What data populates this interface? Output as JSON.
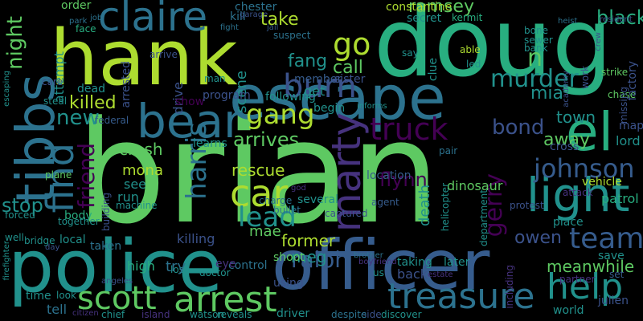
{
  "palette": {
    "dark_purple": "#440154",
    "deep_indigo": "#46327e",
    "indigo": "#3b528b",
    "slate_blue": "#365c8d",
    "steel_blue": "#2c728e",
    "teal": "#21918c",
    "sea_green": "#28ae80",
    "green": "#5ec962",
    "lime": "#addc30",
    "yellow": "#fde725",
    "background": "#000000"
  },
  "words": [
    "brian",
    "hank",
    "doug",
    "police",
    "officer",
    "escape",
    "bear",
    "tibbs",
    "claire",
    "marty",
    "car",
    "find",
    "light",
    "arrest",
    "treasure",
    "scott",
    "help",
    "burn",
    "murder",
    "team",
    "el",
    "truck",
    "gang",
    "harris",
    "friend",
    "johnson",
    "lead",
    "gerry",
    "bond",
    "rescue",
    "ralph",
    "go",
    "n",
    "black",
    "ramsey",
    "night",
    "killed",
    "new",
    "fang",
    "call",
    "stop",
    "crash",
    "arrives",
    "mona",
    "former",
    "meanwhile",
    "meg",
    "mae",
    "owen",
    "town",
    "away",
    "flynn",
    "death",
    "mia",
    "constantine",
    "chester",
    "kill",
    "take",
    "vehicle",
    "lord",
    "map",
    "location",
    "dinosaur",
    "patrol",
    "place",
    "control",
    "shoot",
    "eye",
    "high",
    "tell",
    "local",
    "body",
    "attempt",
    "scene",
    "drive",
    "get",
    "secret",
    "kermit",
    "order",
    "face",
    "job",
    "park",
    "fight",
    "garage",
    "julien",
    "world",
    "chief",
    "driver",
    "reveals",
    "watson",
    "discover",
    "side",
    "despite",
    "island",
    "citizen",
    "look",
    "time",
    "firefighter",
    "escaping",
    "arrested",
    "dead",
    "steal",
    "care",
    "plane",
    "federal",
    "show",
    "program",
    "following",
    "begin",
    "member",
    "sister",
    "clue",
    "able",
    "led",
    "chase",
    "strike",
    "factory",
    "missing",
    "work",
    "crew",
    "bone",
    "sewer",
    "bank",
    "resident",
    "suspect",
    "man",
    "arrive",
    "learns",
    "charge",
    "bullet",
    "several",
    "agent",
    "god",
    "captured",
    "later",
    "taking",
    "boyfriend",
    "us",
    "back",
    "using",
    "doctor",
    "los",
    "angeles",
    "taken",
    "try",
    "killing",
    "save",
    "partner",
    "set",
    "estate",
    "including",
    "department",
    "attack",
    "cross",
    "protest",
    "helicopter",
    "pair",
    "machine",
    "building",
    "together",
    "forced",
    "well",
    "bridge",
    "day",
    "see",
    "run",
    "academy",
    "say",
    "jail",
    "informs",
    "heist",
    "brother"
  ]
}
